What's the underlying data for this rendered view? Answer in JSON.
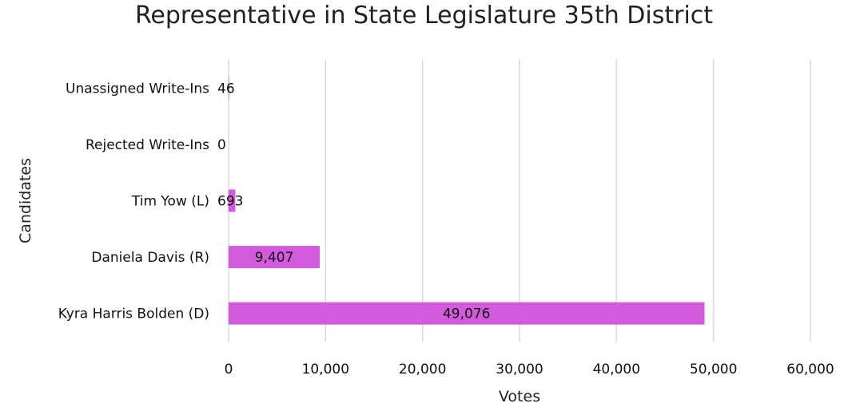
{
  "chart_data": {
    "type": "bar",
    "orientation": "horizontal",
    "title": "Representative in State Legislature 35th District",
    "xlabel": "Votes",
    "ylabel": "Candidates",
    "categories": [
      "Unassigned Write-Ins",
      "Rejected Write-Ins",
      "Tim Yow (L)",
      "Daniela Davis (R)",
      "Kyra Harris Bolden (D)"
    ],
    "values": [
      46,
      0,
      693,
      9407,
      49076
    ],
    "data_labels": [
      "46",
      "0",
      "693",
      "9,407",
      "49,076"
    ],
    "xlim": [
      0,
      60000
    ],
    "x_ticks": [
      0,
      10000,
      20000,
      30000,
      40000,
      50000,
      60000
    ],
    "x_tick_labels": [
      "0",
      "10,000",
      "20,000",
      "30,000",
      "40,000",
      "50,000",
      "60,000"
    ],
    "grid": true,
    "legend": "none",
    "bar_color": "#d15bda"
  }
}
